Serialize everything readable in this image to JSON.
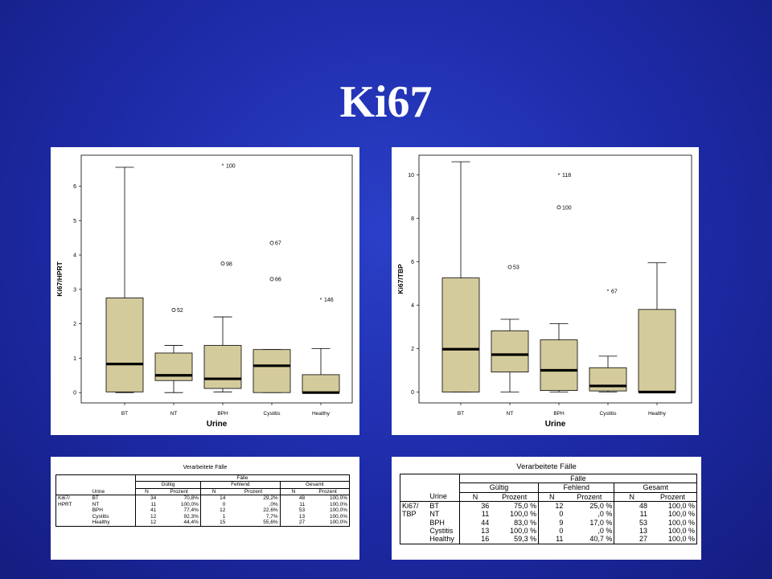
{
  "slide_title": "Ki67",
  "colors": {
    "box_fill": "#d4cb9c",
    "slide_bg": "#1e2ca8",
    "median": "#000000"
  },
  "chart_data": [
    {
      "type": "box",
      "ylabel": "Ki67/HPRT",
      "xlabel": "Urine",
      "ylim": [
        -0.3,
        6.9
      ],
      "yticks": [
        "0",
        "1",
        "2",
        "3",
        "4",
        "5",
        "6"
      ],
      "categories": [
        "BT",
        "NT",
        "BPH",
        "Cystitis",
        "Healthy"
      ],
      "boxes": [
        {
          "category": "BT",
          "whisker_low": 0.0,
          "q1": 0.02,
          "median": 0.83,
          "q3": 2.75,
          "whisker_high": 6.55
        },
        {
          "category": "NT",
          "whisker_low": 0.0,
          "q1": 0.35,
          "median": 0.5,
          "q3": 1.15,
          "whisker_high": 1.37
        },
        {
          "category": "BPH",
          "whisker_low": 0.02,
          "q1": 0.12,
          "median": 0.4,
          "q3": 1.37,
          "whisker_high": 2.2
        },
        {
          "category": "Cystitis",
          "whisker_low": 0.0,
          "q1": 0.0,
          "median": 0.78,
          "q3": 1.25,
          "whisker_high": 1.25
        },
        {
          "category": "Healthy",
          "whisker_low": 0.0,
          "q1": 0.0,
          "median": 0.0,
          "q3": 0.52,
          "whisker_high": 1.28
        }
      ],
      "outliers": [
        {
          "category": "NT",
          "value": 2.4,
          "marker": "circle",
          "label": "52"
        },
        {
          "category": "BPH",
          "value": 6.6,
          "marker": "star",
          "label": "100"
        },
        {
          "category": "BPH",
          "value": 3.75,
          "marker": "circle",
          "label": "98"
        },
        {
          "category": "Cystitis",
          "value": 4.35,
          "marker": "circle",
          "label": "67"
        },
        {
          "category": "Cystitis",
          "value": 3.3,
          "marker": "circle",
          "label": "66"
        },
        {
          "category": "Healthy",
          "value": 2.7,
          "marker": "star",
          "label": "146"
        }
      ]
    },
    {
      "type": "box",
      "ylabel": "Ki67/TBP",
      "xlabel": "Urine",
      "ylim": [
        -0.5,
        10.9
      ],
      "yticks": [
        "0",
        "2",
        "4",
        "6",
        "8",
        "10"
      ],
      "categories": [
        "BT",
        "NT",
        "BPH",
        "Cystitis",
        "Healthy"
      ],
      "boxes": [
        {
          "category": "BT",
          "whisker_low": 0.0,
          "q1": 0.0,
          "median": 1.97,
          "q3": 5.25,
          "whisker_high": 10.6
        },
        {
          "category": "NT",
          "whisker_low": 0.0,
          "q1": 0.92,
          "median": 1.72,
          "q3": 2.82,
          "whisker_high": 3.35
        },
        {
          "category": "BPH",
          "whisker_low": 0.0,
          "q1": 0.07,
          "median": 1.0,
          "q3": 2.4,
          "whisker_high": 3.15
        },
        {
          "category": "Cystitis",
          "whisker_low": 0.0,
          "q1": 0.05,
          "median": 0.28,
          "q3": 1.12,
          "whisker_high": 1.65
        },
        {
          "category": "Healthy",
          "whisker_low": 0.0,
          "q1": 0.0,
          "median": 0.0,
          "q3": 3.8,
          "whisker_high": 5.95
        }
      ],
      "outliers": [
        {
          "category": "NT",
          "value": 5.75,
          "marker": "circle",
          "label": "53"
        },
        {
          "category": "BPH",
          "value": 10.0,
          "marker": "star",
          "label": "118"
        },
        {
          "category": "BPH",
          "value": 8.5,
          "marker": "circle",
          "label": "100"
        },
        {
          "category": "Cystitis",
          "value": 4.65,
          "marker": "star",
          "label": "67"
        }
      ]
    }
  ],
  "tables": [
    {
      "caption": "Verarbeitete Fälle",
      "group_header": "Fälle",
      "sub_headers": [
        "Gültig",
        "Fehlend",
        "Gesamt"
      ],
      "col_labels": [
        "N",
        "Prozent",
        "N",
        "Prozent",
        "N",
        "Prozent"
      ],
      "row_header": "Urine",
      "variable": [
        "Ki67/",
        "HPRT"
      ],
      "rows": [
        [
          "BT",
          "34",
          "70,8%",
          "14",
          "29,2%",
          "48",
          "100,0%"
        ],
        [
          "NT",
          "11",
          "100,0%",
          "0",
          ",0%",
          "11",
          "100,0%"
        ],
        [
          "BPH",
          "41",
          "77,4%",
          "12",
          "22,6%",
          "53",
          "100,0%"
        ],
        [
          "Cystitis",
          "12",
          "92,3%",
          "1",
          "7,7%",
          "13",
          "100,0%"
        ],
        [
          "Healthy",
          "12",
          "44,4%",
          "15",
          "55,6%",
          "27",
          "100,0%"
        ]
      ]
    },
    {
      "caption": "Verarbeitete Fälle",
      "group_header": "Fälle",
      "sub_headers": [
        "Gültig",
        "Fehlend",
        "Gesamt"
      ],
      "col_labels": [
        "N",
        "Prozent",
        "N",
        "Prozent",
        "N",
        "Prozent"
      ],
      "row_header": "Urine",
      "variable": [
        "Ki67/",
        "TBP"
      ],
      "rows": [
        [
          "BT",
          "36",
          "75,0 %",
          "12",
          "25,0 %",
          "48",
          "100,0 %"
        ],
        [
          "NT",
          "11",
          "100,0 %",
          "0",
          ",0 %",
          "11",
          "100,0 %"
        ],
        [
          "BPH",
          "44",
          "83,0 %",
          "9",
          "17,0 %",
          "53",
          "100,0 %"
        ],
        [
          "Cystitis",
          "13",
          "100,0 %",
          "0",
          ",0 %",
          "13",
          "100,0 %"
        ],
        [
          "Healthy",
          "16",
          "59,3 %",
          "11",
          "40,7 %",
          "27",
          "100,0 %"
        ]
      ]
    }
  ]
}
